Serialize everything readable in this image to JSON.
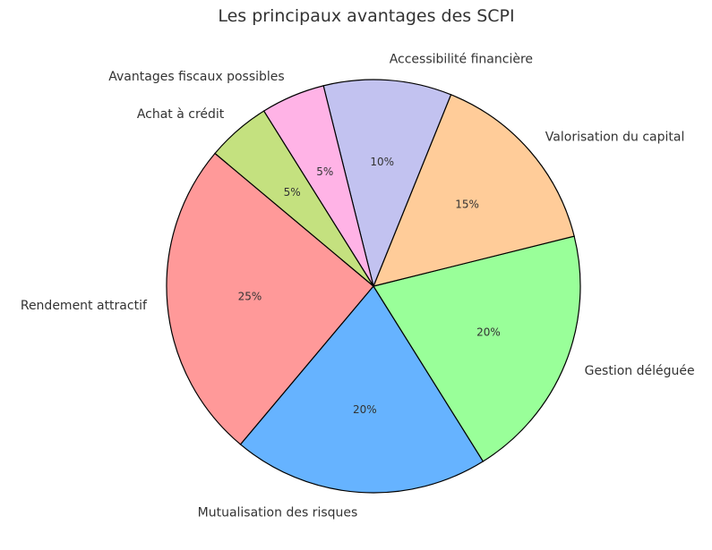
{
  "chart_data": {
    "type": "pie",
    "title": "Les principaux avantages des SCPI",
    "start_angle_deg": 140,
    "direction": "counterclockwise",
    "categories": [
      "Rendement attractif",
      "Mutualisation des risques",
      "Gestion déléguée",
      "Valorisation du capital",
      "Accessibilité financière",
      "Avantages fiscaux possibles",
      "Achat à crédit"
    ],
    "values": [
      25,
      20,
      20,
      15,
      10,
      5,
      5
    ],
    "value_labels": [
      "25%",
      "20%",
      "20%",
      "15%",
      "10%",
      "5%",
      "5%"
    ],
    "colors": [
      "#ff9999",
      "#66b3ff",
      "#99ff99",
      "#ffcc99",
      "#c2c2f0",
      "#ffb3e6",
      "#c4e17f"
    ],
    "edge_color": "#000000"
  }
}
